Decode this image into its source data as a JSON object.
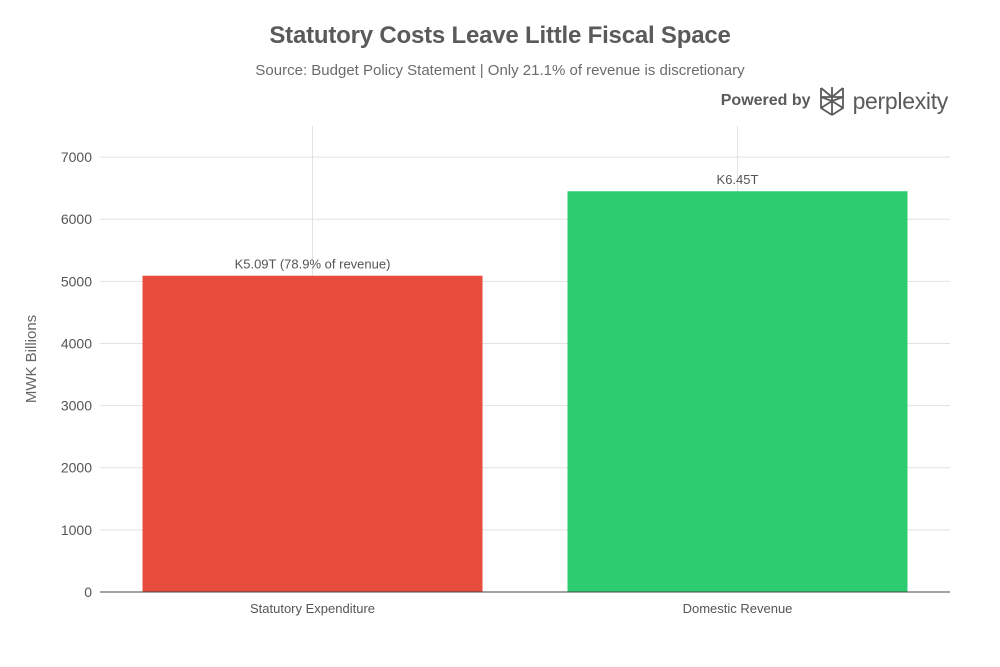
{
  "branding": {
    "powered_by": "Powered by",
    "name": "perplexity",
    "icon": "perplexity-logo-icon"
  },
  "chart_data": {
    "type": "bar",
    "title": "Statutory Costs Leave Little Fiscal Space",
    "subtitle": "Source: Budget Policy Statement | Only 21.1% of revenue is discretionary",
    "xlabel": "",
    "ylabel": "MWK Billions",
    "categories": [
      "Statutory Expenditure",
      "Domestic Revenue"
    ],
    "values": [
      5090,
      6450
    ],
    "data_labels": [
      "K5.09T (78.9% of revenue)",
      "K6.45T"
    ],
    "colors": [
      "#E74C3C",
      "#2ECC71"
    ],
    "ylim": [
      0,
      7500
    ],
    "yticks": [
      0,
      1000,
      2000,
      3000,
      4000,
      5000,
      6000,
      7000
    ],
    "grid": true,
    "legend": "none"
  }
}
